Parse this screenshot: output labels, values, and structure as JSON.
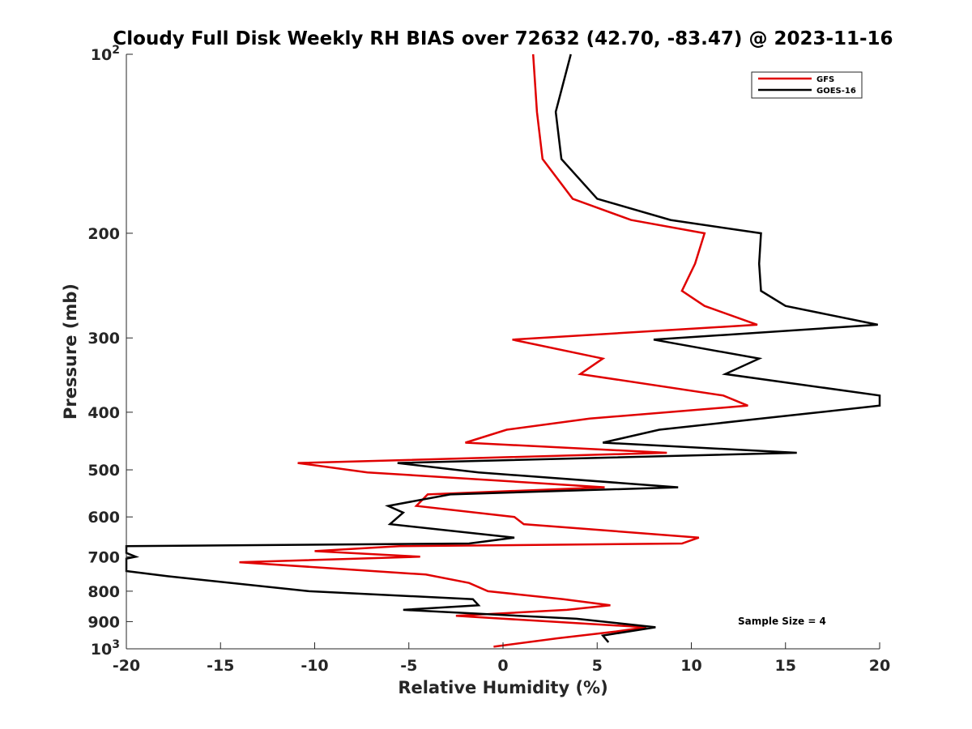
{
  "chart_data": {
    "type": "line",
    "title": "Cloudy Full Disk Weekly RH BIAS over 72632 (42.70, -83.47) @ 2023-11-16",
    "xlabel": "Relative Humidity (%)",
    "ylabel": "Pressure (mb)",
    "xlim": [
      -20,
      20
    ],
    "ylim": [
      100,
      1000
    ],
    "y_scale": "log",
    "y_reversed": true,
    "grid": false,
    "legend_position": "top-right",
    "x_ticks": [
      -20,
      -15,
      -10,
      -5,
      0,
      5,
      10,
      15,
      20
    ],
    "x_tick_labels": [
      "-20",
      "-15",
      "-10",
      "-5",
      "0",
      "5",
      "10",
      "15",
      "20"
    ],
    "y_ticks": [
      100,
      200,
      300,
      400,
      500,
      600,
      700,
      800,
      900,
      1000
    ],
    "y_tick_labels": [
      {
        "text": "10",
        "sup": "2"
      },
      {
        "text": "200"
      },
      {
        "text": "300"
      },
      {
        "text": "400"
      },
      {
        "text": "500"
      },
      {
        "text": "600"
      },
      {
        "text": "700"
      },
      {
        "text": "800"
      },
      {
        "text": "900"
      },
      {
        "text": "10",
        "sup": "3"
      }
    ],
    "annotation": "Sample Size = 4",
    "series": [
      {
        "name": "GFS",
        "color": "#e00000",
        "points": [
          [
            1.6,
            100
          ],
          [
            1.8,
            125
          ],
          [
            2.1,
            150
          ],
          [
            3.7,
            175
          ],
          [
            6.8,
            190
          ],
          [
            10.7,
            200
          ],
          [
            10.2,
            225
          ],
          [
            9.5,
            250
          ],
          [
            10.7,
            265
          ],
          [
            13.5,
            285
          ],
          [
            0.5,
            302
          ],
          [
            5.3,
            325
          ],
          [
            4.1,
            345
          ],
          [
            11.7,
            375
          ],
          [
            13.0,
            390
          ],
          [
            4.6,
            410
          ],
          [
            0.2,
            428
          ],
          [
            -2.0,
            450
          ],
          [
            8.7,
            468
          ],
          [
            -10.9,
            487
          ],
          [
            -7.2,
            505
          ],
          [
            5.4,
            535
          ],
          [
            -4.0,
            550
          ],
          [
            -4.6,
            575
          ],
          [
            0.6,
            600
          ],
          [
            1.1,
            617
          ],
          [
            10.4,
            650
          ],
          [
            9.5,
            665
          ],
          [
            -5.5,
            672
          ],
          [
            -10.0,
            685
          ],
          [
            -4.4,
            700
          ],
          [
            -14.0,
            715
          ],
          [
            -4.1,
            750
          ],
          [
            -1.8,
            775
          ],
          [
            -0.8,
            800
          ],
          [
            3.2,
            825
          ],
          [
            5.7,
            845
          ],
          [
            3.4,
            860
          ],
          [
            -2.5,
            880
          ],
          [
            7.6,
            920
          ],
          [
            6.0,
            935
          ],
          [
            2.9,
            960
          ],
          [
            -0.5,
            992
          ]
        ]
      },
      {
        "name": "GOES-16",
        "color": "#000000",
        "points": [
          [
            3.6,
            100
          ],
          [
            2.8,
            125
          ],
          [
            3.1,
            150
          ],
          [
            5.0,
            175
          ],
          [
            8.9,
            190
          ],
          [
            13.7,
            200
          ],
          [
            13.6,
            225
          ],
          [
            13.7,
            250
          ],
          [
            15.0,
            265
          ],
          [
            19.9,
            285
          ],
          [
            8.0,
            302
          ],
          [
            13.6,
            325
          ],
          [
            11.8,
            345
          ],
          [
            20.0,
            375
          ],
          [
            20.0,
            390
          ],
          [
            13.7,
            410
          ],
          [
            8.3,
            428
          ],
          [
            5.3,
            450
          ],
          [
            15.6,
            468
          ],
          [
            -5.6,
            487
          ],
          [
            -1.3,
            505
          ],
          [
            9.3,
            535
          ],
          [
            -2.8,
            550
          ],
          [
            -6.1,
            575
          ],
          [
            -5.3,
            590
          ],
          [
            -6.0,
            617
          ],
          [
            0.6,
            650
          ],
          [
            -1.8,
            665
          ],
          [
            -20.0,
            672
          ],
          [
            -20.0,
            690
          ],
          [
            -19.5,
            700
          ],
          [
            -20.0,
            705
          ],
          [
            -20.0,
            740
          ],
          [
            -17.8,
            755
          ],
          [
            -10.3,
            800
          ],
          [
            -1.6,
            825
          ],
          [
            -1.3,
            845
          ],
          [
            -5.3,
            860
          ],
          [
            3.9,
            890
          ],
          [
            8.1,
            920
          ],
          [
            5.3,
            950
          ],
          [
            5.6,
            975
          ]
        ]
      }
    ]
  }
}
